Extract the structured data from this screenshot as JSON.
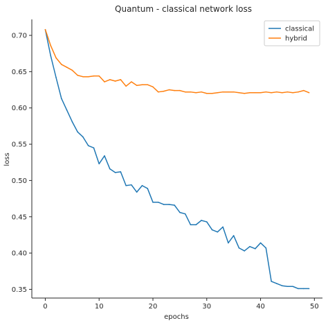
{
  "chart_data": {
    "type": "line",
    "title": "Quantum - classical network loss",
    "xlabel": "epochs",
    "ylabel": "loss",
    "xlim": [
      -2.5,
      51.5
    ],
    "ylim": [
      0.338,
      0.722
    ],
    "xticks": [
      "0",
      "10",
      "20",
      "30",
      "40",
      "50"
    ],
    "yticks": [
      "0.35",
      "0.40",
      "0.45",
      "0.50",
      "0.55",
      "0.60",
      "0.65",
      "0.70"
    ],
    "grid": false,
    "legend_position": "top-right",
    "series": [
      {
        "name": "classical",
        "color": "#1f77b4",
        "x": [
          0,
          1,
          2,
          3,
          4,
          5,
          6,
          7,
          8,
          9,
          10,
          11,
          12,
          13,
          14,
          15,
          16,
          17,
          18,
          19,
          20,
          21,
          22,
          23,
          24,
          25,
          26,
          27,
          28,
          29,
          30,
          31,
          32,
          33,
          34,
          35,
          36,
          37,
          38,
          39,
          40,
          41,
          42,
          43,
          44,
          45,
          46,
          47,
          48,
          49
        ],
        "values": [
          0.708,
          0.672,
          0.642,
          0.613,
          0.597,
          0.581,
          0.567,
          0.56,
          0.548,
          0.545,
          0.523,
          0.534,
          0.516,
          0.511,
          0.512,
          0.493,
          0.494,
          0.484,
          0.493,
          0.489,
          0.47,
          0.47,
          0.467,
          0.467,
          0.466,
          0.456,
          0.454,
          0.439,
          0.439,
          0.445,
          0.443,
          0.432,
          0.429,
          0.436,
          0.414,
          0.424,
          0.407,
          0.403,
          0.409,
          0.406,
          0.414,
          0.407,
          0.361,
          0.358,
          0.355,
          0.354,
          0.354,
          0.351,
          0.351,
          0.351
        ]
      },
      {
        "name": "hybrid",
        "color": "#ff7f0e",
        "x": [
          0,
          1,
          2,
          3,
          4,
          5,
          6,
          7,
          8,
          9,
          10,
          11,
          12,
          13,
          14,
          15,
          16,
          17,
          18,
          19,
          20,
          21,
          22,
          23,
          24,
          25,
          26,
          27,
          28,
          29,
          30,
          31,
          32,
          33,
          34,
          35,
          36,
          37,
          38,
          39,
          40,
          41,
          42,
          43,
          44,
          45,
          46,
          47,
          48,
          49
        ],
        "values": [
          0.708,
          0.686,
          0.669,
          0.66,
          0.656,
          0.652,
          0.645,
          0.643,
          0.643,
          0.644,
          0.644,
          0.636,
          0.639,
          0.637,
          0.639,
          0.63,
          0.636,
          0.631,
          0.632,
          0.632,
          0.629,
          0.622,
          0.623,
          0.625,
          0.624,
          0.624,
          0.622,
          0.622,
          0.621,
          0.622,
          0.62,
          0.62,
          0.621,
          0.622,
          0.622,
          0.622,
          0.621,
          0.62,
          0.621,
          0.621,
          0.621,
          0.622,
          0.621,
          0.622,
          0.621,
          0.622,
          0.621,
          0.622,
          0.624,
          0.621
        ]
      }
    ]
  }
}
